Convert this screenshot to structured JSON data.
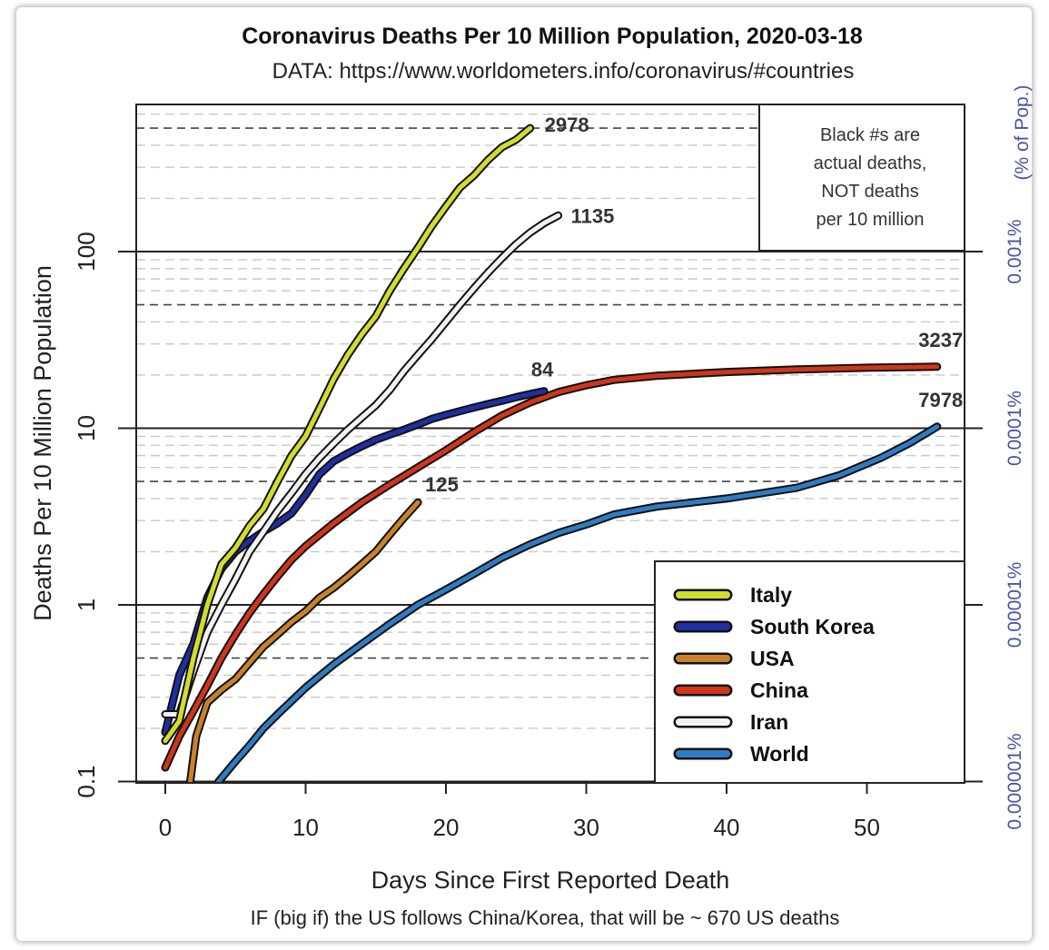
{
  "chart_data": {
    "type": "line",
    "title": "Coronavirus Deaths Per 10 Million Population, 2020-03-18",
    "subtitle": "DATA: https://www.worldometers.info/coronavirus/#countries",
    "xlabel": "Days Since First Reported Death",
    "ylabel": "Deaths Per 10 Million Population",
    "y2label": "(% of Pop.)",
    "footnote": "IF (big if) the US follows China/Korea, that will be ~ 670 US deaths",
    "note_lines": [
      "Black #s are",
      "actual deaths,",
      "NOT deaths",
      "per 10 million"
    ],
    "yscale": "log",
    "xlim": [
      -2,
      60
    ],
    "ylim": [
      0.1,
      640
    ],
    "x_ticks": [
      "0",
      "10",
      "20",
      "30",
      "40",
      "50"
    ],
    "y_ticks": [
      "0.1",
      "1",
      "10",
      "100"
    ],
    "y2_ticks": [
      "0.000001%",
      "0.00001%",
      "0.0001%",
      "0.001%"
    ],
    "grid": "horizontal, dashed minor lines",
    "legend_position": "bottom-right",
    "series": [
      {
        "name": "Italy",
        "color": "#d2dc2e",
        "end_label": "2978",
        "points": [
          [
            0,
            0.17
          ],
          [
            1,
            0.22
          ],
          [
            2,
            0.5
          ],
          [
            3,
            1.0
          ],
          [
            4,
            1.7
          ],
          [
            5,
            2.1
          ],
          [
            6,
            2.8
          ],
          [
            7,
            3.5
          ],
          [
            8,
            5
          ],
          [
            9,
            7
          ],
          [
            10,
            9
          ],
          [
            11,
            13
          ],
          [
            12,
            19
          ],
          [
            13,
            26
          ],
          [
            14,
            34
          ],
          [
            15,
            43
          ],
          [
            16,
            60
          ],
          [
            17,
            80
          ],
          [
            18,
            105
          ],
          [
            19,
            140
          ],
          [
            20,
            180
          ],
          [
            21,
            230
          ],
          [
            22,
            270
          ],
          [
            23,
            330
          ],
          [
            24,
            390
          ],
          [
            25,
            430
          ],
          [
            26,
            500
          ]
        ]
      },
      {
        "name": "South Korea",
        "color": "#1f2fa3",
        "end_label": "84",
        "points": [
          [
            0,
            0.19
          ],
          [
            1,
            0.4
          ],
          [
            2,
            0.6
          ],
          [
            3,
            1.1
          ],
          [
            4,
            1.6
          ],
          [
            5,
            2.0
          ],
          [
            6,
            2.3
          ],
          [
            7,
            2.6
          ],
          [
            8,
            2.9
          ],
          [
            9,
            3.3
          ],
          [
            10,
            4.2
          ],
          [
            11,
            5.5
          ],
          [
            12,
            6.5
          ],
          [
            13,
            7.2
          ],
          [
            14,
            7.9
          ],
          [
            15,
            8.6
          ],
          [
            16,
            9.2
          ],
          [
            17,
            9.8
          ],
          [
            18,
            10.5
          ],
          [
            19,
            11.3
          ],
          [
            20,
            11.9
          ],
          [
            21,
            12.5
          ],
          [
            22,
            13.1
          ],
          [
            23,
            13.7
          ],
          [
            24,
            14.3
          ],
          [
            25,
            15.0
          ],
          [
            26,
            15.6
          ],
          [
            27,
            16.2
          ]
        ]
      },
      {
        "name": "USA",
        "color": "#c9822a",
        "end_label": "125",
        "points": [
          [
            1.7,
            0.09
          ],
          [
            2.2,
            0.18
          ],
          [
            3,
            0.28
          ],
          [
            4,
            0.33
          ],
          [
            5,
            0.38
          ],
          [
            6,
            0.47
          ],
          [
            7,
            0.58
          ],
          [
            8,
            0.68
          ],
          [
            9,
            0.8
          ],
          [
            10,
            0.92
          ],
          [
            11,
            1.1
          ],
          [
            12,
            1.25
          ],
          [
            13,
            1.45
          ],
          [
            14,
            1.7
          ],
          [
            15,
            2.0
          ],
          [
            16,
            2.5
          ],
          [
            17,
            3.1
          ],
          [
            18,
            3.8
          ]
        ]
      },
      {
        "name": "China",
        "color": "#d0351a",
        "end_label": "3237",
        "points": [
          [
            0,
            0.12
          ],
          [
            1,
            0.18
          ],
          [
            2,
            0.25
          ],
          [
            3,
            0.35
          ],
          [
            4,
            0.5
          ],
          [
            5,
            0.68
          ],
          [
            6,
            0.9
          ],
          [
            7,
            1.15
          ],
          [
            8,
            1.45
          ],
          [
            9,
            1.8
          ],
          [
            10,
            2.15
          ],
          [
            12,
            2.9
          ],
          [
            14,
            3.8
          ],
          [
            16,
            4.8
          ],
          [
            18,
            6.0
          ],
          [
            20,
            7.5
          ],
          [
            22,
            9.5
          ],
          [
            24,
            11.8
          ],
          [
            26,
            14.0
          ],
          [
            28,
            16.0
          ],
          [
            30,
            17.5
          ],
          [
            32,
            18.8
          ],
          [
            35,
            19.8
          ],
          [
            40,
            20.8
          ],
          [
            45,
            21.5
          ],
          [
            50,
            22.0
          ],
          [
            55,
            22.3
          ]
        ]
      },
      {
        "name": "Iran",
        "color": "#f2f2f2",
        "end_label": "1135",
        "points": [
          [
            0,
            0.24
          ],
          [
            1,
            0.24
          ],
          [
            2,
            0.42
          ],
          [
            3,
            0.7
          ],
          [
            4,
            1.0
          ],
          [
            5,
            1.4
          ],
          [
            6,
            2.0
          ],
          [
            7,
            2.6
          ],
          [
            8,
            3.4
          ],
          [
            9,
            4.3
          ],
          [
            10,
            5.5
          ],
          [
            11,
            6.8
          ],
          [
            12,
            8.2
          ],
          [
            13,
            9.8
          ],
          [
            14,
            11.5
          ],
          [
            15,
            13.5
          ],
          [
            16,
            16.5
          ],
          [
            17,
            21
          ],
          [
            18,
            26
          ],
          [
            19,
            32
          ],
          [
            20,
            40
          ],
          [
            21,
            50
          ],
          [
            22,
            62
          ],
          [
            23,
            76
          ],
          [
            24,
            92
          ],
          [
            25,
            110
          ],
          [
            26,
            128
          ],
          [
            27,
            145
          ],
          [
            28,
            160
          ]
        ]
      },
      {
        "name": "World",
        "color": "#2f7cc4",
        "end_label": "7978",
        "points": [
          [
            3.8,
            0.1
          ],
          [
            5,
            0.13
          ],
          [
            6,
            0.16
          ],
          [
            7,
            0.2
          ],
          [
            8,
            0.24
          ],
          [
            10,
            0.34
          ],
          [
            12,
            0.46
          ],
          [
            14,
            0.6
          ],
          [
            16,
            0.78
          ],
          [
            18,
            1.0
          ],
          [
            20,
            1.22
          ],
          [
            22,
            1.5
          ],
          [
            24,
            1.85
          ],
          [
            26,
            2.2
          ],
          [
            28,
            2.55
          ],
          [
            30,
            2.85
          ],
          [
            32,
            3.25
          ],
          [
            35,
            3.6
          ],
          [
            40,
            4.0
          ],
          [
            45,
            4.6
          ],
          [
            48,
            5.4
          ],
          [
            51,
            6.8
          ],
          [
            53,
            8.2
          ],
          [
            55,
            10.2
          ]
        ]
      }
    ]
  }
}
